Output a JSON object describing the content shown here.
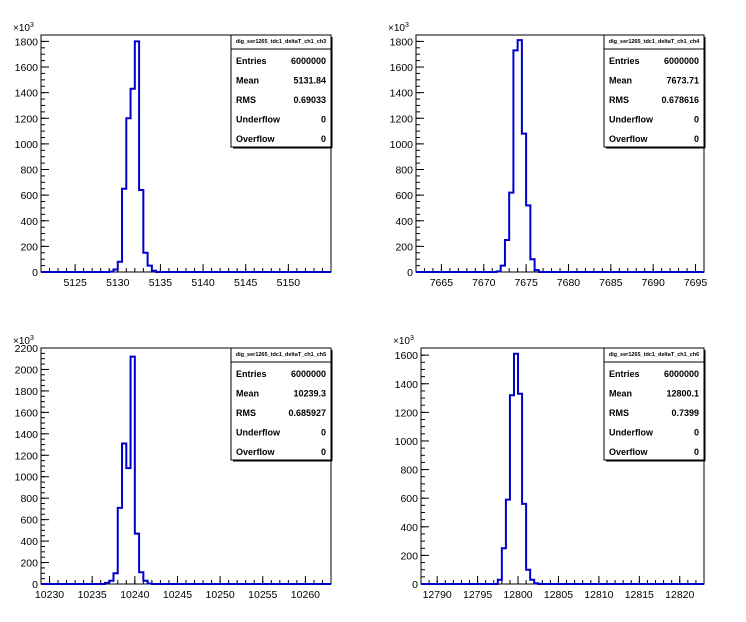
{
  "chart_data": [
    {
      "type": "histogram",
      "title": "dig_ser1265_tdc1_deltaT_ch1_ch3",
      "y_multiplier": "×10",
      "y_multiplier_exp": "3",
      "xlim": [
        5121,
        5155
      ],
      "ylim": [
        0,
        1850
      ],
      "x_ticks": [
        5125,
        5130,
        5135,
        5140,
        5145,
        5150
      ],
      "y_ticks": [
        0,
        200,
        400,
        600,
        800,
        1000,
        1200,
        1400,
        1600,
        1800
      ],
      "bins": [
        {
          "x0": 5129.0,
          "x1": 5129.5,
          "value": 3
        },
        {
          "x0": 5129.5,
          "x1": 5130.0,
          "value": 20
        },
        {
          "x0": 5130.0,
          "x1": 5130.5,
          "value": 80
        },
        {
          "x0": 5130.5,
          "x1": 5131.0,
          "value": 650
        },
        {
          "x0": 5131.0,
          "x1": 5131.5,
          "value": 1200
        },
        {
          "x0": 5131.5,
          "x1": 5132.0,
          "value": 1430
        },
        {
          "x0": 5132.0,
          "x1": 5132.5,
          "value": 1800
        },
        {
          "x0": 5132.5,
          "x1": 5133.0,
          "value": 640
        },
        {
          "x0": 5133.0,
          "x1": 5133.5,
          "value": 150
        },
        {
          "x0": 5133.5,
          "x1": 5134.0,
          "value": 50
        },
        {
          "x0": 5134.0,
          "x1": 5134.5,
          "value": 10
        }
      ],
      "stats": [
        {
          "label": "Entries",
          "value": "6000000"
        },
        {
          "label": "Mean",
          "value": "5131.84"
        },
        {
          "label": "RMS",
          "value": "0.69033"
        },
        {
          "label": "Underflow",
          "value": "0"
        },
        {
          "label": "Overflow",
          "value": "0"
        }
      ]
    },
    {
      "type": "histogram",
      "title": "dig_ser1265_tdc1_deltaT_ch1_ch4",
      "y_multiplier": "×10",
      "y_multiplier_exp": "3",
      "xlim": [
        7662,
        7696
      ],
      "ylim": [
        0,
        1850
      ],
      "x_ticks": [
        7665,
        7670,
        7675,
        7680,
        7685,
        7690,
        7695
      ],
      "y_ticks": [
        0,
        200,
        400,
        600,
        800,
        1000,
        1200,
        1400,
        1600,
        1800
      ],
      "bins": [
        {
          "x0": 7671.5,
          "x1": 7672.0,
          "value": 5
        },
        {
          "x0": 7672.0,
          "x1": 7672.5,
          "value": 50
        },
        {
          "x0": 7672.5,
          "x1": 7673.0,
          "value": 250
        },
        {
          "x0": 7673.0,
          "x1": 7673.5,
          "value": 620
        },
        {
          "x0": 7673.5,
          "x1": 7674.0,
          "value": 1730
        },
        {
          "x0": 7674.0,
          "x1": 7674.5,
          "value": 1810
        },
        {
          "x0": 7674.5,
          "x1": 7675.0,
          "value": 1080
        },
        {
          "x0": 7675.0,
          "x1": 7675.5,
          "value": 520
        },
        {
          "x0": 7675.5,
          "x1": 7676.0,
          "value": 100
        },
        {
          "x0": 7676.0,
          "x1": 7676.5,
          "value": 15
        }
      ],
      "stats": [
        {
          "label": "Entries",
          "value": "6000000"
        },
        {
          "label": "Mean",
          "value": "7673.71"
        },
        {
          "label": "RMS",
          "value": "0.678616"
        },
        {
          "label": "Underflow",
          "value": "0"
        },
        {
          "label": "Overflow",
          "value": "0"
        }
      ]
    },
    {
      "type": "histogram",
      "title": "dig_ser1265_tdc1_deltaT_ch1_ch5",
      "y_multiplier": "×10",
      "y_multiplier_exp": "3",
      "xlim": [
        10229,
        10263
      ],
      "ylim": [
        0,
        2200
      ],
      "x_ticks": [
        10230,
        10235,
        10240,
        10245,
        10250,
        10255,
        10260
      ],
      "y_ticks": [
        0,
        200,
        400,
        600,
        800,
        1000,
        1200,
        1400,
        1600,
        1800,
        2000,
        2200
      ],
      "bins": [
        {
          "x0": 10236.5,
          "x1": 10237.0,
          "value": 10
        },
        {
          "x0": 10237.0,
          "x1": 10237.5,
          "value": 30
        },
        {
          "x0": 10237.5,
          "x1": 10238.0,
          "value": 100
        },
        {
          "x0": 10238.0,
          "x1": 10238.5,
          "value": 710
        },
        {
          "x0": 10238.5,
          "x1": 10239.0,
          "value": 1310
        },
        {
          "x0": 10239.0,
          "x1": 10239.5,
          "value": 1080
        },
        {
          "x0": 10239.5,
          "x1": 10240.0,
          "value": 2120
        },
        {
          "x0": 10240.0,
          "x1": 10240.5,
          "value": 470
        },
        {
          "x0": 10240.5,
          "x1": 10241.0,
          "value": 110
        },
        {
          "x0": 10241.0,
          "x1": 10241.5,
          "value": 30
        },
        {
          "x0": 10241.5,
          "x1": 10242.0,
          "value": 5
        }
      ],
      "stats": [
        {
          "label": "Entries",
          "value": "6000000"
        },
        {
          "label": "Mean",
          "value": "10239.3"
        },
        {
          "label": "RMS",
          "value": "0.685927"
        },
        {
          "label": "Underflow",
          "value": "0"
        },
        {
          "label": "Overflow",
          "value": "0"
        }
      ]
    },
    {
      "type": "histogram",
      "title": "dig_ser1265_tdc1_deltaT_ch1_ch6",
      "y_multiplier": "×10",
      "y_multiplier_exp": "3",
      "xlim": [
        12788,
        12823
      ],
      "ylim": [
        0,
        1650
      ],
      "x_ticks": [
        12790,
        12795,
        12800,
        12805,
        12810,
        12815,
        12820
      ],
      "y_ticks": [
        0,
        200,
        400,
        600,
        800,
        1000,
        1200,
        1400,
        1600
      ],
      "bins": [
        {
          "x0": 12797.5,
          "x1": 12798.0,
          "value": 30
        },
        {
          "x0": 12798.0,
          "x1": 12798.5,
          "value": 250
        },
        {
          "x0": 12798.5,
          "x1": 12799.0,
          "value": 590
        },
        {
          "x0": 12799.0,
          "x1": 12799.5,
          "value": 1320
        },
        {
          "x0": 12799.5,
          "x1": 12800.0,
          "value": 1610
        },
        {
          "x0": 12800.0,
          "x1": 12800.5,
          "value": 1330
        },
        {
          "x0": 12800.5,
          "x1": 12801.0,
          "value": 560
        },
        {
          "x0": 12801.0,
          "x1": 12801.5,
          "value": 100
        },
        {
          "x0": 12801.5,
          "x1": 12802.0,
          "value": 30
        },
        {
          "x0": 12802.0,
          "x1": 12802.5,
          "value": 5
        }
      ],
      "stats": [
        {
          "label": "Entries",
          "value": "6000000"
        },
        {
          "label": "Mean",
          "value": "12800.1"
        },
        {
          "label": "RMS",
          "value": "0.7399"
        },
        {
          "label": "Underflow",
          "value": "0"
        },
        {
          "label": "Overflow",
          "value": "0"
        }
      ]
    }
  ],
  "colors": {
    "line": "#0000cc",
    "axis": "#000000",
    "background": "#ffffff"
  }
}
